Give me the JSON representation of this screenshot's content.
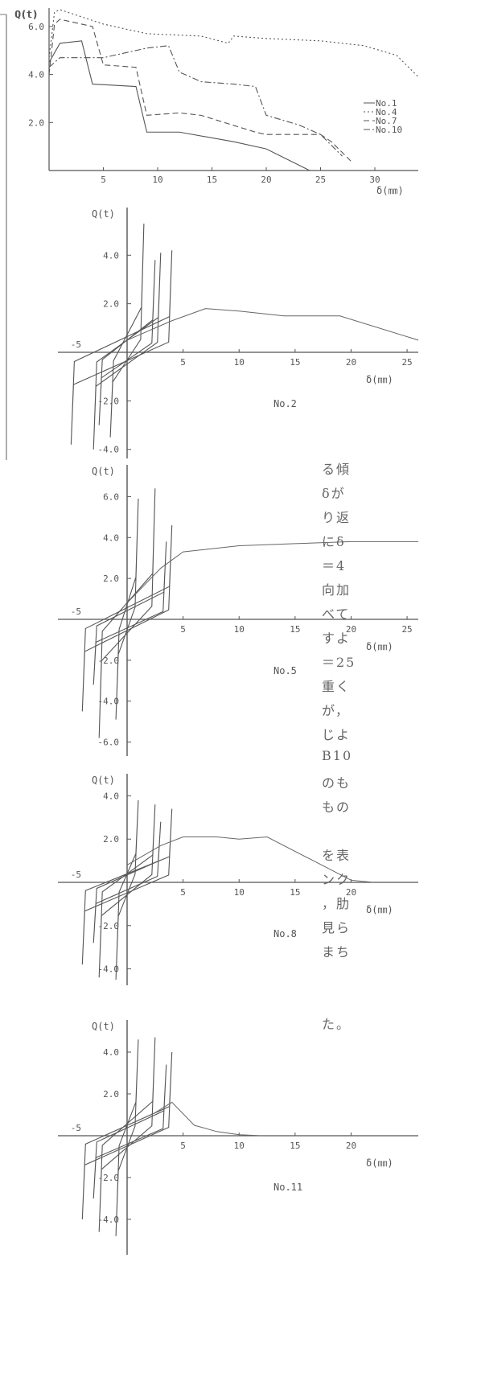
{
  "fragments": {
    "left_q_label": "Q(t)",
    "jp_lines": [
      "る傾",
      "δが",
      "り返",
      "にδ",
      "＝4",
      "向加",
      "べて",
      "すよ",
      "＝25",
      "重く",
      "が，",
      "じよ",
      "B10",
      "のも",
      "もの",
      "を表",
      "ンク",
      "，肋",
      "見ら",
      "まち",
      "た。"
    ]
  },
  "chart_data": [
    {
      "type": "line",
      "ylabel": "Q(t)",
      "xlabel": "δ(㎜)",
      "xlim": [
        0,
        34
      ],
      "ylim": [
        0,
        6.5
      ],
      "yticks": [
        "2.0",
        "4.0",
        "6.0"
      ],
      "xticks": [
        "5",
        "10",
        "15",
        "20",
        "25",
        "30"
      ],
      "legend_position": "right",
      "series": [
        {
          "name": "No.1",
          "style": "solid",
          "x": [
            0,
            1,
            3,
            4,
            8,
            9,
            12,
            17,
            20,
            24
          ],
          "y": [
            4.5,
            5.3,
            5.4,
            3.6,
            3.5,
            1.6,
            1.6,
            1.2,
            0.9,
            0.0
          ]
        },
        {
          "name": "No.4",
          "style": "dotted",
          "x": [
            0,
            0.5,
            1,
            3,
            5,
            9,
            14,
            16.5,
            17,
            20,
            25,
            29,
            32,
            34
          ],
          "y": [
            4.7,
            6.6,
            6.7,
            6.4,
            6.1,
            5.7,
            5.6,
            5.3,
            5.6,
            5.5,
            5.4,
            5.2,
            4.8,
            3.9
          ]
        },
        {
          "name": "No.7",
          "style": "dash",
          "x": [
            0,
            0.5,
            1,
            4,
            5,
            8,
            9,
            12,
            14,
            19,
            20,
            25,
            26,
            28
          ],
          "y": [
            4.0,
            6.1,
            6.3,
            6.0,
            4.4,
            4.3,
            2.3,
            2.4,
            2.3,
            1.6,
            1.5,
            1.5,
            1.2,
            0.3
          ]
        },
        {
          "name": "No.10",
          "style": "dashdot",
          "x": [
            0,
            1,
            3,
            5,
            8,
            9,
            11,
            12,
            14,
            17,
            19,
            20,
            23,
            25,
            27
          ],
          "y": [
            4.3,
            4.7,
            4.7,
            4.7,
            5.0,
            5.1,
            5.2,
            4.1,
            3.7,
            3.6,
            3.5,
            2.3,
            1.9,
            1.5,
            0.6
          ]
        }
      ]
    },
    {
      "type": "line",
      "name_label": "No.2",
      "ylabel": "Q(t)",
      "xlabel": "δ(㎜)",
      "xlim": [
        -5,
        26
      ],
      "ylim": [
        -4.5,
        5.5
      ],
      "yticks": [
        "4.0",
        "2.0",
        "-2.0",
        "-4.0"
      ],
      "xticks": [
        "-5",
        "5",
        "10",
        "15",
        "20",
        "25"
      ],
      "envelope": {
        "x": [
          0,
          4,
          7,
          10,
          14,
          19,
          26
        ],
        "y": [
          0.5,
          1.3,
          1.8,
          1.7,
          1.5,
          1.5,
          0.5
        ]
      },
      "loops": [
        {
          "xmin": -5,
          "xmax": 4,
          "ymin": -3.8,
          "ymax": 4.2
        },
        {
          "xmin": -3,
          "xmax": 3,
          "ymin": -4.0,
          "ymax": 4.1
        },
        {
          "xmin": -1.5,
          "xmax": 1.5,
          "ymin": -3.5,
          "ymax": 5.3
        },
        {
          "xmin": -2.5,
          "xmax": 2.5,
          "ymin": -3.0,
          "ymax": 3.8
        }
      ]
    },
    {
      "type": "line",
      "name_label": "No.5",
      "ylabel": "Q(t)",
      "xlabel": "δ(㎜)",
      "xlim": [
        -5,
        26
      ],
      "ylim": [
        -6.5,
        7
      ],
      "yticks": [
        "6.0",
        "4.0",
        "2.0",
        "-2.0",
        "-4.0",
        "-6.0"
      ],
      "xticks": [
        "-5",
        "5",
        "10",
        "15",
        "20",
        "25"
      ],
      "envelope": {
        "x": [
          0,
          3,
          5,
          10,
          15,
          20,
          26
        ],
        "y": [
          0.8,
          2.5,
          3.3,
          3.6,
          3.7,
          3.8,
          3.8
        ]
      },
      "loops": [
        {
          "xmin": -4,
          "xmax": 4,
          "ymin": -4.5,
          "ymax": 4.6
        },
        {
          "xmin": -2.5,
          "xmax": 2.5,
          "ymin": -5.8,
          "ymax": 6.4
        },
        {
          "xmin": -1,
          "xmax": 1,
          "ymin": -4.9,
          "ymax": 5.9
        },
        {
          "xmin": -3,
          "xmax": 3.5,
          "ymin": -3.2,
          "ymax": 3.8
        }
      ]
    },
    {
      "type": "line",
      "name_label": "No.8",
      "ylabel": "Q(t)",
      "xlabel": "δ(㎜)",
      "xlim": [
        -5,
        26
      ],
      "ylim": [
        -5,
        4.5
      ],
      "yticks": [
        "4.0",
        "2.0",
        "-2.0",
        "-4.0"
      ],
      "xticks": [
        "-5",
        "5",
        "10",
        "15",
        "20"
      ],
      "envelope": {
        "x": [
          0,
          3,
          5,
          8,
          10,
          12.5,
          20,
          22
        ],
        "y": [
          0.8,
          1.7,
          2.1,
          2.1,
          2.0,
          2.1,
          0.1,
          0.0
        ]
      },
      "loops": [
        {
          "xmin": -4,
          "xmax": 4,
          "ymin": -3.8,
          "ymax": 3.4
        },
        {
          "xmin": -2.5,
          "xmax": 2.5,
          "ymin": -4.4,
          "ymax": 3.6
        },
        {
          "xmin": -1,
          "xmax": 1,
          "ymin": -4.5,
          "ymax": 3.8
        },
        {
          "xmin": -3,
          "xmax": 3,
          "ymin": -2.8,
          "ymax": 2.8
        }
      ]
    },
    {
      "type": "line",
      "name_label": "No.11",
      "ylabel": "Q(t)",
      "xlabel": "δ(㎜)",
      "xlim": [
        -5,
        26
      ],
      "ylim": [
        -5,
        5
      ],
      "yticks": [
        "4.0",
        "2.0",
        "-2.0",
        "-4.0"
      ],
      "xticks": [
        "-5",
        "5",
        "10",
        "15",
        "20"
      ],
      "envelope": {
        "x": [
          0,
          2.5,
          4,
          6,
          8,
          10,
          12
        ],
        "y": [
          0.5,
          1.1,
          1.6,
          0.5,
          0.2,
          0.05,
          0.0
        ]
      },
      "loops": [
        {
          "xmin": -4,
          "xmax": 4,
          "ymin": -4.0,
          "ymax": 4.0
        },
        {
          "xmin": -2.5,
          "xmax": 2.5,
          "ymin": -4.6,
          "ymax": 4.7
        },
        {
          "xmin": -1,
          "xmax": 1,
          "ymin": -4.8,
          "ymax": 4.6
        },
        {
          "xmin": -3,
          "xmax": 3.5,
          "ymin": -3.0,
          "ymax": 3.4
        }
      ]
    }
  ]
}
